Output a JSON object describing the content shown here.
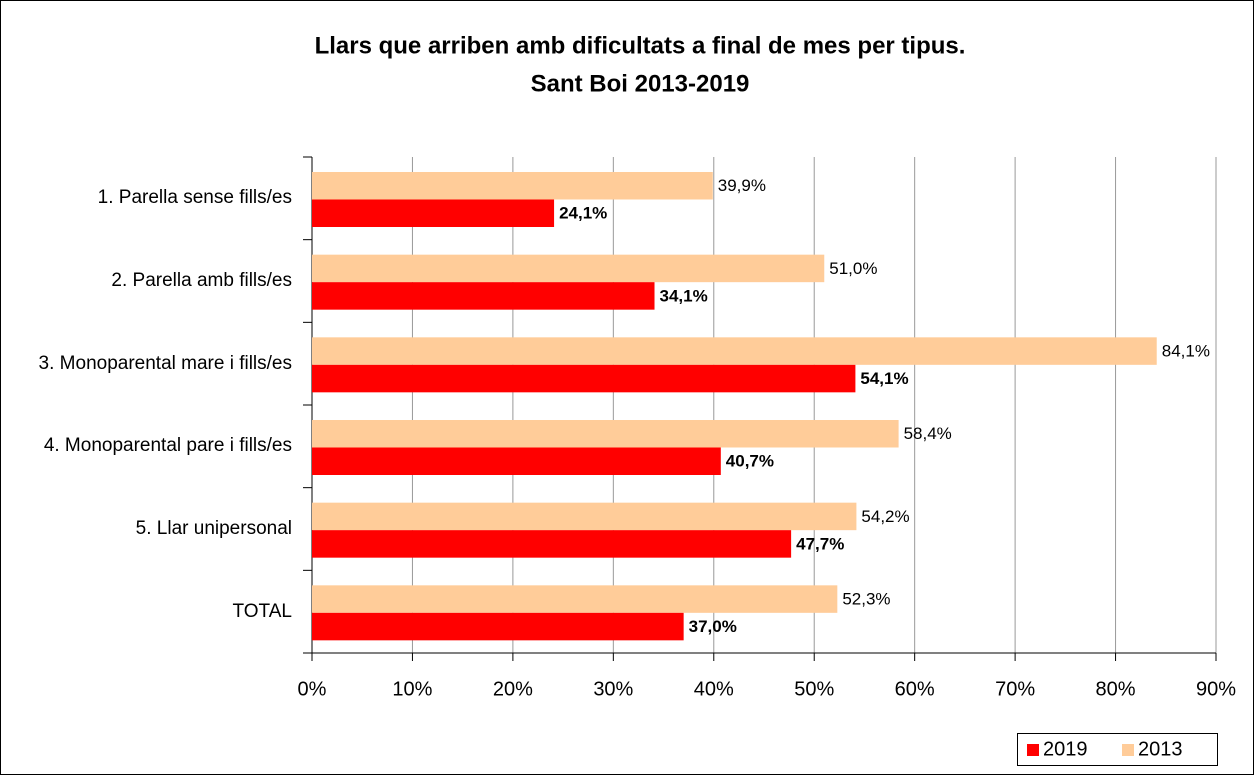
{
  "chart_data": {
    "type": "hbar",
    "title": [
      "Llars que arriben amb dificultats a final de mes per tipus.",
      "Sant Boi 2013-2019"
    ],
    "categories": [
      "1. Parella sense fills/es",
      "2. Parella amb fills/es",
      "3. Monoparental mare i fills/es",
      "4. Monoparental pare i fills/es",
      "5. Llar unipersonal",
      "TOTAL"
    ],
    "series": [
      {
        "name": "2019",
        "color": "#ff0000",
        "values": [
          24.1,
          34.1,
          54.1,
          40.7,
          47.7,
          37.0
        ],
        "value_labels": [
          "24,1%",
          "34,1%",
          "54,1%",
          "40,7%",
          "47,7%",
          "37,0%"
        ]
      },
      {
        "name": "2013",
        "color": "#ffcc99",
        "values": [
          39.9,
          51.0,
          84.1,
          58.4,
          54.2,
          52.3
        ],
        "value_labels": [
          "39,9%",
          "51,0%",
          "84,1%",
          "58,4%",
          "54,2%",
          "52,3%"
        ]
      }
    ],
    "xlim": [
      0,
      90
    ],
    "xticks": [
      {
        "value": 0,
        "label": "0%"
      },
      {
        "value": 10,
        "label": "10%"
      },
      {
        "value": 20,
        "label": "20%"
      },
      {
        "value": 30,
        "label": "30%"
      },
      {
        "value": 40,
        "label": "40%"
      },
      {
        "value": 50,
        "label": "50%"
      },
      {
        "value": 60,
        "label": "60%"
      },
      {
        "value": 70,
        "label": "70%"
      },
      {
        "value": 80,
        "label": "80%"
      },
      {
        "value": 90,
        "label": "90%"
      }
    ],
    "grid": true,
    "legend": "bottom-right"
  }
}
